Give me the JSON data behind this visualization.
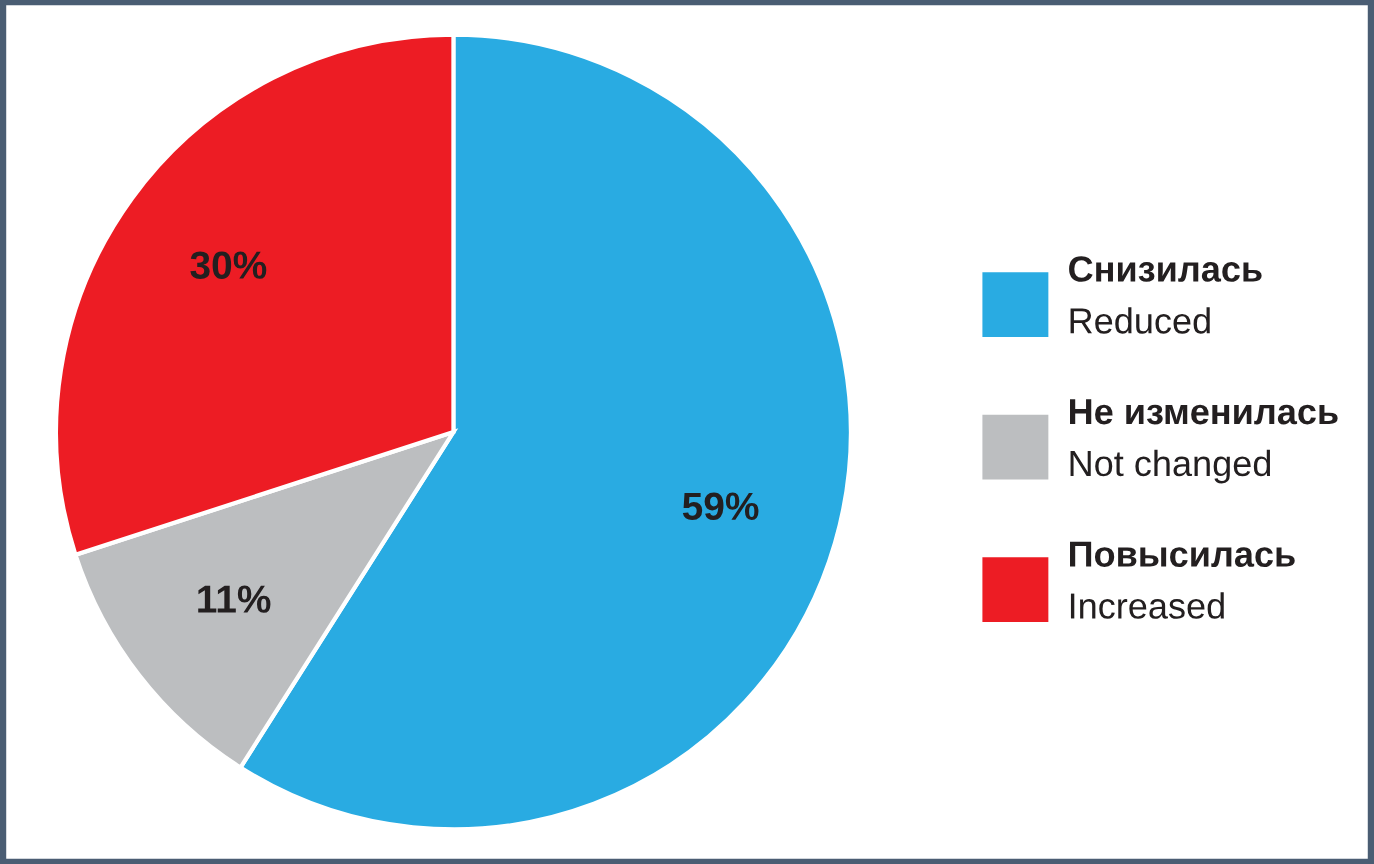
{
  "chart_data": {
    "type": "pie",
    "categories": [
      "Снизилась\nReduced",
      "Не изменилась\nNot changed",
      "Повысилась\nIncreased"
    ],
    "values": [
      59,
      11,
      30
    ],
    "colors": [
      "#29abe2",
      "#bcbec0",
      "#ed1c24"
    ],
    "value_labels": [
      "59%",
      "11%",
      "30%"
    ],
    "legend": "right"
  }
}
